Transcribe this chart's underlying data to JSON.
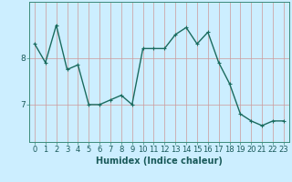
{
  "x": [
    0,
    1,
    2,
    3,
    4,
    5,
    6,
    7,
    8,
    9,
    10,
    11,
    12,
    13,
    14,
    15,
    16,
    17,
    18,
    19,
    20,
    21,
    22,
    23
  ],
  "y": [
    8.3,
    7.9,
    8.7,
    7.75,
    7.85,
    7.0,
    7.0,
    7.1,
    7.2,
    7.0,
    8.2,
    8.2,
    8.2,
    8.5,
    8.65,
    8.3,
    8.55,
    7.9,
    7.45,
    6.8,
    6.65,
    6.55,
    6.65,
    6.65
  ],
  "line_color": "#1a6b5e",
  "marker": "+",
  "marker_size": 3,
  "bg_color": "#cceeff",
  "plot_bg": "#cceeff",
  "vgrid_color": "#cc9999",
  "hgrid_color": "#cc9999",
  "xlabel": "Humidex (Indice chaleur)",
  "xlabel_fontsize": 7,
  "ylabel_ticks": [
    7,
    8
  ],
  "xlim": [
    -0.5,
    23.5
  ],
  "ylim": [
    6.2,
    9.2
  ],
  "tick_fontsize": 6.5,
  "linewidth": 1.0
}
